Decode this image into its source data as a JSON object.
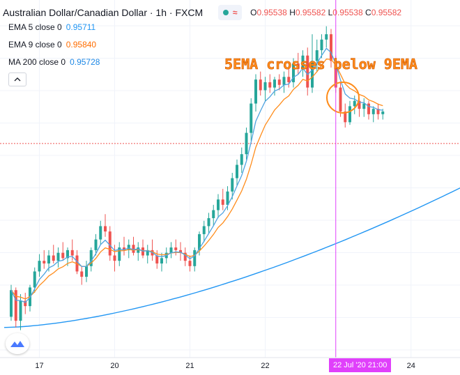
{
  "header": {
    "symbol_title": "Australian Dollar/Canadian Dollar · 1h · FXCM",
    "ohlc": [
      {
        "key": "O",
        "value": "0.95538"
      },
      {
        "key": "H",
        "value": "0.95582"
      },
      {
        "key": "L",
        "value": "0.95538"
      },
      {
        "key": "C",
        "value": "0.95582"
      }
    ]
  },
  "indicators": [
    {
      "label": "EMA 5 close 0",
      "value": "0.95711",
      "color": "#2196f3"
    },
    {
      "label": "EMA 9 close 0",
      "value": "0.95840",
      "color": "#ff6d00"
    },
    {
      "label": "MA 200 close 0",
      "value": "0.95728",
      "color": "#1e88e5"
    }
  ],
  "annotation": "5EMA crosses below 9EMA",
  "crosshair_label": "22 Jul '20   21:00",
  "icons": {
    "collapse": "chevron-up-icon",
    "logo": "tradingview-logo-icon",
    "status": "market-status-icon"
  },
  "colors": {
    "up": "#26a69a",
    "down": "#ef5350",
    "ema5": "#4fa3e0",
    "ema9": "#ff8c1a",
    "ma200": "#2196f3",
    "crosshair": "#e040fb",
    "price_line": "#ef5350",
    "annotation": "#ff8c1a"
  },
  "chart_data": {
    "type": "candlestick",
    "x_tick_labels": [
      {
        "label": "17",
        "index": 6
      },
      {
        "label": "20",
        "index": 22
      },
      {
        "label": "21",
        "index": 38
      },
      {
        "label": "22",
        "index": 54
      },
      {
        "label": "24",
        "index": 85
      }
    ],
    "ylim": [
      0.94,
      0.965
    ],
    "crosshair_index": 69,
    "last_price": 0.9558,
    "candles": [
      [
        0.9428,
        0.9452,
        0.9425,
        0.9448
      ],
      [
        0.9448,
        0.945,
        0.942,
        0.9425
      ],
      [
        0.9425,
        0.9445,
        0.9418,
        0.944
      ],
      [
        0.944,
        0.9446,
        0.943,
        0.9436
      ],
      [
        0.9436,
        0.9452,
        0.9432,
        0.945
      ],
      [
        0.945,
        0.9465,
        0.9446,
        0.9462
      ],
      [
        0.9462,
        0.9475,
        0.9458,
        0.947
      ],
      [
        0.947,
        0.9478,
        0.9464,
        0.9468
      ],
      [
        0.9468,
        0.9478,
        0.9462,
        0.9474
      ],
      [
        0.9474,
        0.9482,
        0.9468,
        0.947
      ],
      [
        0.947,
        0.948,
        0.9465,
        0.9476
      ],
      [
        0.9476,
        0.9484,
        0.947,
        0.9472
      ],
      [
        0.9472,
        0.948,
        0.9466,
        0.9478
      ],
      [
        0.9478,
        0.9486,
        0.947,
        0.9474
      ],
      [
        0.9474,
        0.9478,
        0.946,
        0.9462
      ],
      [
        0.9462,
        0.9466,
        0.9452,
        0.9458
      ],
      [
        0.9458,
        0.947,
        0.9454,
        0.9466
      ],
      [
        0.9466,
        0.948,
        0.9462,
        0.9478
      ],
      [
        0.9478,
        0.949,
        0.9474,
        0.9486
      ],
      [
        0.9486,
        0.95,
        0.9482,
        0.9496
      ],
      [
        0.9496,
        0.9505,
        0.9488,
        0.9492
      ],
      [
        0.9492,
        0.9496,
        0.947,
        0.9474
      ],
      [
        0.9474,
        0.9482,
        0.9462,
        0.947
      ],
      [
        0.947,
        0.9484,
        0.9466,
        0.948
      ],
      [
        0.948,
        0.9488,
        0.9474,
        0.9478
      ],
      [
        0.9478,
        0.9486,
        0.9472,
        0.9482
      ],
      [
        0.9482,
        0.9488,
        0.9474,
        0.9476
      ],
      [
        0.9476,
        0.9484,
        0.947,
        0.948
      ],
      [
        0.948,
        0.9486,
        0.9472,
        0.9474
      ],
      [
        0.9474,
        0.9482,
        0.9468,
        0.9478
      ],
      [
        0.9478,
        0.9486,
        0.947,
        0.9474
      ],
      [
        0.9474,
        0.9478,
        0.9464,
        0.9468
      ],
      [
        0.9468,
        0.9476,
        0.9462,
        0.9472
      ],
      [
        0.9472,
        0.948,
        0.9468,
        0.9476
      ],
      [
        0.9476,
        0.9484,
        0.9472,
        0.948
      ],
      [
        0.948,
        0.9486,
        0.9474,
        0.9478
      ],
      [
        0.9478,
        0.9484,
        0.947,
        0.9476
      ],
      [
        0.9476,
        0.948,
        0.9466,
        0.947
      ],
      [
        0.947,
        0.9474,
        0.9462,
        0.9466
      ],
      [
        0.9466,
        0.948,
        0.9462,
        0.9478
      ],
      [
        0.9478,
        0.9492,
        0.9474,
        0.949
      ],
      [
        0.949,
        0.95,
        0.9484,
        0.9496
      ],
      [
        0.9496,
        0.9506,
        0.949,
        0.9502
      ],
      [
        0.9502,
        0.9512,
        0.9496,
        0.9508
      ],
      [
        0.9508,
        0.952,
        0.9502,
        0.9516
      ],
      [
        0.9516,
        0.9524,
        0.9508,
        0.9512
      ],
      [
        0.9512,
        0.9526,
        0.9508,
        0.9522
      ],
      [
        0.9522,
        0.9536,
        0.9516,
        0.9532
      ],
      [
        0.9532,
        0.9546,
        0.9526,
        0.9542
      ],
      [
        0.9542,
        0.9555,
        0.9536,
        0.955
      ],
      [
        0.955,
        0.957,
        0.9546,
        0.9566
      ],
      [
        0.9566,
        0.9592,
        0.956,
        0.9588
      ],
      [
        0.9588,
        0.961,
        0.9582,
        0.9606
      ],
      [
        0.9606,
        0.9612,
        0.9594,
        0.9598
      ],
      [
        0.9598,
        0.9608,
        0.959,
        0.9604
      ],
      [
        0.9604,
        0.961,
        0.9596,
        0.96
      ],
      [
        0.96,
        0.9608,
        0.9594,
        0.9606
      ],
      [
        0.9606,
        0.961,
        0.9598,
        0.9602
      ],
      [
        0.9602,
        0.9612,
        0.9596,
        0.9608
      ],
      [
        0.9608,
        0.9616,
        0.96,
        0.9604
      ],
      [
        0.9604,
        0.9622,
        0.96,
        0.9618
      ],
      [
        0.9618,
        0.9626,
        0.961,
        0.9614
      ],
      [
        0.9614,
        0.9628,
        0.9608,
        0.9624
      ],
      [
        0.9624,
        0.963,
        0.9594,
        0.96
      ],
      [
        0.96,
        0.964,
        0.9596,
        0.962
      ],
      [
        0.962,
        0.9636,
        0.9612,
        0.9628
      ],
      [
        0.9628,
        0.964,
        0.9622,
        0.9636
      ],
      [
        0.9636,
        0.9646,
        0.963,
        0.964
      ],
      [
        0.964,
        0.9644,
        0.9615,
        0.962
      ],
      [
        0.962,
        0.9624,
        0.9596,
        0.96
      ],
      [
        0.96,
        0.9604,
        0.9578,
        0.9582
      ],
      [
        0.9582,
        0.9588,
        0.957,
        0.9574
      ],
      [
        0.9574,
        0.959,
        0.9572,
        0.9586
      ],
      [
        0.9586,
        0.9594,
        0.958,
        0.959
      ],
      [
        0.959,
        0.9592,
        0.9578,
        0.9584
      ],
      [
        0.9584,
        0.9592,
        0.9578,
        0.9588
      ],
      [
        0.9588,
        0.959,
        0.9576,
        0.958
      ],
      [
        0.958,
        0.9586,
        0.9574,
        0.9584
      ],
      [
        0.9584,
        0.9588,
        0.9576,
        0.958
      ],
      [
        0.958,
        0.9584,
        0.9576,
        0.9582
      ]
    ]
  }
}
